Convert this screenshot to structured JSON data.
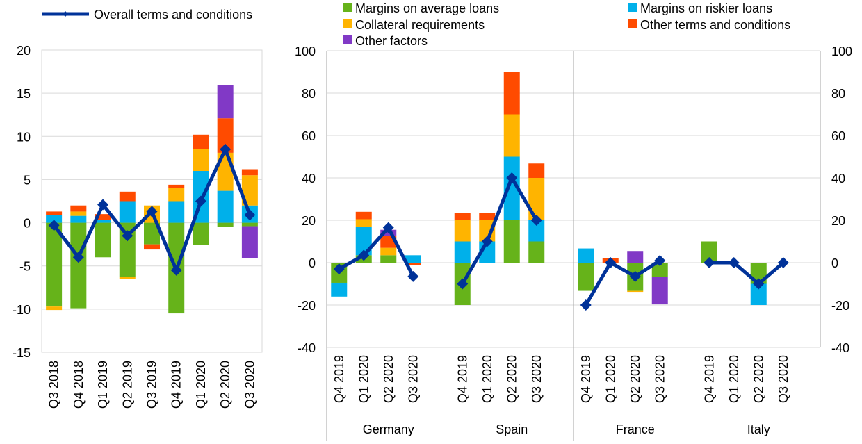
{
  "colors": {
    "margins_avg": "#66b31a",
    "margins_risk": "#00b0ea",
    "collateral": "#ffb400",
    "other_terms": "#ff4b00",
    "other_factors": "#8139c6",
    "line": "#003299",
    "grid": "#d9d9d9",
    "axis": "#a6a6a6"
  },
  "legend": {
    "overall": "Overall terms and conditions",
    "margins_avg": "Margins on average loans",
    "margins_risk": "Margins on riskier loans",
    "collateral": "Collateral requirements",
    "other_terms": "Other terms and conditions",
    "other_factors": "Other factors"
  },
  "chart_data": [
    {
      "type": "bar",
      "subtype": "stacked-bar-with-line",
      "ylim": [
        -15,
        20
      ],
      "yticks": [
        "-15",
        "-10",
        "-5",
        "0",
        "5",
        "10",
        "15",
        "20"
      ],
      "categories": [
        "Q3 2018",
        "Q4 2018",
        "Q1 2019",
        "Q2 2019",
        "Q3 2019",
        "Q4 2019",
        "Q1 2020",
        "Q2 2020",
        "Q3 2020"
      ],
      "series": [
        {
          "name": "Margins on average loans",
          "key": "margins_avg",
          "values": [
            -9.7,
            -9.9,
            -4.0,
            -6.3,
            -2.5,
            -10.5,
            -2.6,
            -0.5,
            -0.4
          ]
        },
        {
          "name": "Margins on riskier loans",
          "key": "margins_risk",
          "values": [
            0.9,
            0.8,
            0.3,
            2.5,
            0.0,
            2.5,
            6.0,
            3.7,
            2.0
          ]
        },
        {
          "name": "Collateral requirements",
          "key": "collateral",
          "values": [
            -0.4,
            0.5,
            0.0,
            -0.2,
            2.0,
            1.5,
            2.5,
            4.4,
            3.5
          ]
        },
        {
          "name": "Other terms and conditions",
          "key": "other_terms",
          "values": [
            0.4,
            0.7,
            0.7,
            1.1,
            -0.6,
            0.4,
            1.7,
            4.0,
            0.7
          ]
        },
        {
          "name": "Other factors",
          "key": "other_factors",
          "values": [
            0,
            0,
            0,
            0,
            0,
            0,
            0,
            3.8,
            -3.7
          ]
        },
        {
          "name": "Overall terms and conditions",
          "key": "overall",
          "type": "line",
          "values": [
            -0.3,
            -4.0,
            2.1,
            -1.5,
            1.3,
            -5.5,
            2.5,
            8.5,
            0.9
          ]
        }
      ]
    },
    {
      "type": "bar",
      "subtype": "stacked-bar-with-line",
      "ylim": [
        -40,
        100
      ],
      "yticks": [
        "-40",
        "-20",
        "0",
        "20",
        "40",
        "60",
        "80",
        "100"
      ],
      "groups": [
        {
          "name": "Germany",
          "categories": [
            "Q4 2019",
            "Q1 2020",
            "Q2 2020",
            "Q3 2020"
          ],
          "series": {
            "margins_avg": [
              -9.5,
              3.5,
              3.5,
              0
            ],
            "margins_risk": [
              -6.5,
              13.5,
              0,
              3.5
            ],
            "collateral": [
              0,
              3.5,
              3.5,
              0
            ],
            "other_terms": [
              0,
              3.5,
              5.5,
              -1.0
            ],
            "other_factors": [
              0,
              0,
              3.0,
              0
            ],
            "overall": [
              -3.0,
              3.5,
              16.5,
              -6.5
            ]
          }
        },
        {
          "name": "Spain",
          "categories": [
            "Q4 2019",
            "Q1 2020",
            "Q2 2020",
            "Q3 2020"
          ],
          "series": {
            "margins_avg": [
              -20,
              0,
              20,
              10
            ],
            "margins_risk": [
              10,
              10,
              30,
              10
            ],
            "collateral": [
              10,
              10,
              20,
              20
            ],
            "other_terms": [
              3.5,
              3.5,
              20,
              6.8
            ],
            "other_factors": [
              0,
              0,
              0,
              0
            ],
            "overall": [
              -10,
              10,
              40,
              20
            ]
          }
        },
        {
          "name": "France",
          "categories": [
            "Q4 2019",
            "Q1 2020",
            "Q2 2020",
            "Q3 2020"
          ],
          "series": {
            "margins_avg": [
              -13.3,
              0,
              -13.3,
              -6.7
            ],
            "margins_risk": [
              6.7,
              0,
              0,
              0
            ],
            "collateral": [
              0,
              0,
              -0.5,
              0
            ],
            "other_terms": [
              0,
              2.0,
              0,
              0
            ],
            "other_factors": [
              0,
              0,
              5.5,
              -13.0
            ],
            "overall": [
              -20,
              0,
              -6.5,
              1.0
            ]
          }
        },
        {
          "name": "Italy",
          "categories": [
            "Q4 2019",
            "Q1 2020",
            "Q2 2020",
            "Q3 2020"
          ],
          "series": {
            "margins_avg": [
              10,
              0,
              -10,
              0
            ],
            "margins_risk": [
              0,
              0,
              -10,
              0
            ],
            "collateral": [
              0,
              0,
              0,
              0
            ],
            "other_terms": [
              0,
              0,
              0,
              0
            ],
            "other_factors": [
              0,
              0,
              0,
              0
            ],
            "overall": [
              0,
              0,
              -10,
              0
            ]
          }
        }
      ]
    }
  ]
}
